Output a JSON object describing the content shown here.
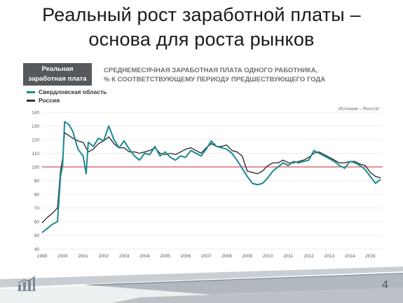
{
  "slide": {
    "title_line1": "Реальный рост заработной платы –",
    "title_line2": "основа для роста рынков",
    "page_number": "4",
    "footer_icon": "bar-chart-icon"
  },
  "chart_data": {
    "type": "line",
    "badge_line1": "Реальная",
    "badge_line2": "заработная плата",
    "title_line1": "СРЕДНЕМЕСЯЧНАЯ ЗАРАБОТНАЯ ПЛАТА ОДНОГО РАБОТНИКА,",
    "title_line2": "% К СООТВЕТСТВУЮЩЕМУ ПЕРИОДУ ПРЕДШЕСТВУЮЩЕГО ГОДА",
    "source": "Источник – Росстат",
    "x_ticks": [
      "1999",
      "2000",
      "2001",
      "2002",
      "2003",
      "2004",
      "2005",
      "2006",
      "2007",
      "2008",
      "2009",
      "2010",
      "2011",
      "2012",
      "2013",
      "2014",
      "2015"
    ],
    "xlim": [
      1999,
      2015.6
    ],
    "ylim": [
      40,
      140
    ],
    "y_ticks": [
      40,
      50,
      60,
      70,
      80,
      90,
      100,
      110,
      120,
      130,
      140
    ],
    "grid": true,
    "reference_line": {
      "value": 100,
      "color": "#c0282d"
    },
    "series": [
      {
        "name": "Свердловская область",
        "color": "#1a8a8f",
        "x": [
          1999.0,
          1999.25,
          1999.5,
          1999.75,
          1999.9,
          2000.0,
          2000.1,
          2000.3,
          2000.5,
          2000.75,
          2001.0,
          2001.15,
          2001.25,
          2001.5,
          2001.75,
          2002.0,
          2002.25,
          2002.5,
          2002.75,
          2003.0,
          2003.25,
          2003.5,
          2003.75,
          2004.0,
          2004.25,
          2004.5,
          2004.75,
          2005.0,
          2005.25,
          2005.5,
          2005.75,
          2006.0,
          2006.25,
          2006.5,
          2006.75,
          2007.0,
          2007.25,
          2007.5,
          2007.75,
          2008.0,
          2008.25,
          2008.5,
          2008.75,
          2009.0,
          2009.25,
          2009.5,
          2009.75,
          2010.0,
          2010.25,
          2010.5,
          2010.75,
          2011.0,
          2011.25,
          2011.5,
          2011.75,
          2012.0,
          2012.25,
          2012.5,
          2012.75,
          2013.0,
          2013.25,
          2013.5,
          2013.75,
          2014.0,
          2014.25,
          2014.5,
          2014.75,
          2015.0,
          2015.25,
          2015.5
        ],
        "values": [
          52,
          55,
          58,
          60,
          93,
          101,
          133,
          131,
          126,
          113,
          108,
          95,
          118,
          115,
          121,
          119,
          130,
          120,
          114,
          119,
          113,
          108,
          105,
          110,
          109,
          115,
          108,
          111,
          107,
          105,
          108,
          107,
          112,
          110,
          108,
          113,
          119,
          115,
          114,
          113,
          110,
          105,
          99,
          93,
          88,
          87,
          88,
          92,
          97,
          100,
          103,
          101,
          104,
          103,
          104,
          105,
          112,
          110,
          108,
          106,
          104,
          101,
          99,
          104,
          103,
          101,
          98,
          93,
          88,
          91
        ]
      },
      {
        "name": "Россия",
        "color": "#333333",
        "x": [
          1999.0,
          1999.25,
          1999.5,
          1999.75,
          1999.9,
          2000.0,
          2000.1,
          2000.3,
          2000.5,
          2000.75,
          2001.0,
          2001.25,
          2001.5,
          2001.75,
          2002.0,
          2002.25,
          2002.5,
          2002.75,
          2003.0,
          2003.25,
          2003.5,
          2003.75,
          2004.0,
          2004.25,
          2004.5,
          2004.75,
          2005.0,
          2005.25,
          2005.5,
          2005.75,
          2006.0,
          2006.25,
          2006.5,
          2006.75,
          2007.0,
          2007.25,
          2007.5,
          2007.75,
          2008.0,
          2008.25,
          2008.5,
          2008.75,
          2009.0,
          2009.25,
          2009.5,
          2009.75,
          2010.0,
          2010.25,
          2010.5,
          2010.75,
          2011.0,
          2011.25,
          2011.5,
          2011.75,
          2012.0,
          2012.25,
          2012.5,
          2012.75,
          2013.0,
          2013.25,
          2013.5,
          2013.75,
          2014.0,
          2014.25,
          2014.5,
          2014.75,
          2015.0,
          2015.25,
          2015.5
        ],
        "values": [
          59,
          63,
          66,
          70,
          97,
          106,
          125,
          123,
          121,
          119,
          118,
          111,
          113,
          117,
          119,
          122,
          117,
          114,
          114,
          111,
          111,
          110,
          111,
          112,
          114,
          110,
          109,
          110,
          109,
          111,
          113,
          114,
          112,
          110,
          114,
          117,
          115,
          115,
          116,
          112,
          111,
          108,
          97,
          96,
          95,
          97,
          101,
          103,
          103,
          105,
          103,
          103,
          104,
          105,
          107,
          110,
          111,
          109,
          107,
          105,
          103,
          103,
          104,
          104,
          102,
          101,
          96,
          93,
          92
        ]
      }
    ]
  }
}
